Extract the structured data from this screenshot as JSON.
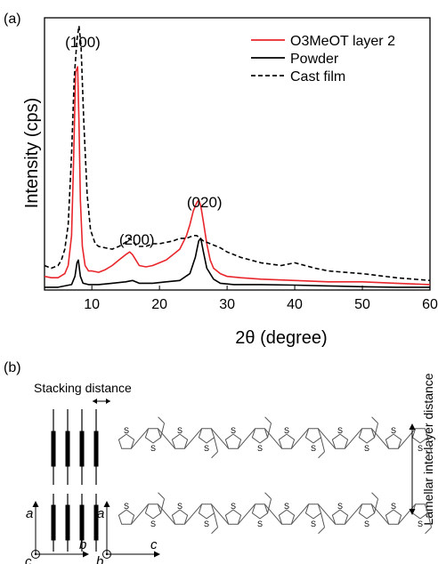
{
  "panel_a_label": "(a)",
  "panel_b_label": "(b)",
  "chart_data": {
    "type": "line",
    "xlabel": "2θ (degree)",
    "ylabel": "Intensity (cps)",
    "xlim": [
      3,
      60
    ],
    "ylim": [
      0,
      1
    ],
    "x_ticks": [
      "10",
      "20",
      "30",
      "40",
      "50",
      "60"
    ],
    "y_ticks_shown": false,
    "legend_position": "top-right",
    "annotations": [
      {
        "text": "(100)",
        "x": 8
      },
      {
        "text": "(200)",
        "x": 16
      },
      {
        "text": "(020)",
        "x": 26
      }
    ],
    "series": [
      {
        "name": "O3MeOT layer 2",
        "color": "#e8262b",
        "style": "solid",
        "x": [
          3,
          4,
          5,
          6,
          6.5,
          7,
          7.3,
          7.6,
          7.9,
          8.1,
          8.3,
          8.6,
          9,
          9.5,
          10,
          11,
          12,
          13,
          14,
          15,
          15.6,
          16,
          16.5,
          17,
          18,
          19,
          20,
          21,
          22,
          23,
          24,
          24.5,
          25,
          25.5,
          25.8,
          26.1,
          26.5,
          27,
          27.5,
          28,
          29,
          30,
          32,
          35,
          40,
          45,
          50,
          55,
          60
        ],
        "y": [
          0.05,
          0.045,
          0.045,
          0.06,
          0.09,
          0.2,
          0.48,
          0.8,
          0.82,
          0.62,
          0.33,
          0.16,
          0.09,
          0.07,
          0.07,
          0.065,
          0.075,
          0.09,
          0.11,
          0.13,
          0.14,
          0.13,
          0.11,
          0.09,
          0.085,
          0.09,
          0.1,
          0.11,
          0.13,
          0.15,
          0.2,
          0.24,
          0.29,
          0.32,
          0.33,
          0.31,
          0.25,
          0.17,
          0.11,
          0.08,
          0.06,
          0.05,
          0.045,
          0.04,
          0.035,
          0.03,
          0.03,
          0.025,
          0.02
        ]
      },
      {
        "name": "Powder",
        "color": "#000000",
        "style": "solid",
        "x": [
          3,
          5,
          7,
          7.5,
          7.8,
          8.0,
          8.3,
          8.7,
          9.5,
          11,
          13,
          15,
          16,
          17,
          19,
          21,
          23,
          24.5,
          25.3,
          25.8,
          26.1,
          26.5,
          27,
          28,
          29,
          31,
          35,
          40,
          45,
          50,
          55,
          60
        ],
        "y": [
          0.01,
          0.01,
          0.02,
          0.05,
          0.1,
          0.11,
          0.05,
          0.025,
          0.02,
          0.02,
          0.025,
          0.03,
          0.035,
          0.025,
          0.025,
          0.03,
          0.035,
          0.06,
          0.12,
          0.18,
          0.19,
          0.14,
          0.08,
          0.04,
          0.025,
          0.02,
          0.02,
          0.018,
          0.015,
          0.012,
          0.01,
          0.01
        ]
      },
      {
        "name": "Cast film",
        "color": "#000000",
        "style": "dashed",
        "x": [
          3,
          4,
          5,
          5.5,
          6,
          6.5,
          7,
          7.4,
          7.8,
          8.1,
          8.4,
          8.8,
          9.3,
          9.8,
          10.5,
          11,
          12,
          13,
          14,
          15,
          15.5,
          16,
          16.5,
          17,
          18,
          19,
          20,
          21,
          22,
          23,
          24,
          25,
          25.5,
          26,
          26.5,
          27,
          28,
          29,
          30,
          32,
          35,
          38,
          40,
          43,
          45,
          50,
          55,
          60
        ],
        "y": [
          0.09,
          0.08,
          0.09,
          0.11,
          0.15,
          0.24,
          0.5,
          0.78,
          0.92,
          0.97,
          0.9,
          0.62,
          0.35,
          0.22,
          0.17,
          0.16,
          0.155,
          0.15,
          0.16,
          0.175,
          0.19,
          0.18,
          0.165,
          0.16,
          0.16,
          0.17,
          0.17,
          0.175,
          0.18,
          0.19,
          0.19,
          0.2,
          0.2,
          0.19,
          0.18,
          0.175,
          0.165,
          0.155,
          0.14,
          0.12,
          0.1,
          0.09,
          0.1,
          0.08,
          0.07,
          0.06,
          0.045,
          0.035
        ]
      }
    ]
  },
  "diagram_b": {
    "stacking_label": "Stacking distance",
    "lamellar_label": "Lamellar interlayer distance",
    "axes_left": {
      "up": "a",
      "right": "b",
      "origin": "c"
    },
    "axes_right": {
      "up": "a",
      "right": "c",
      "origin": "b"
    },
    "ring_atom": "S",
    "stick_color": "#555555"
  }
}
